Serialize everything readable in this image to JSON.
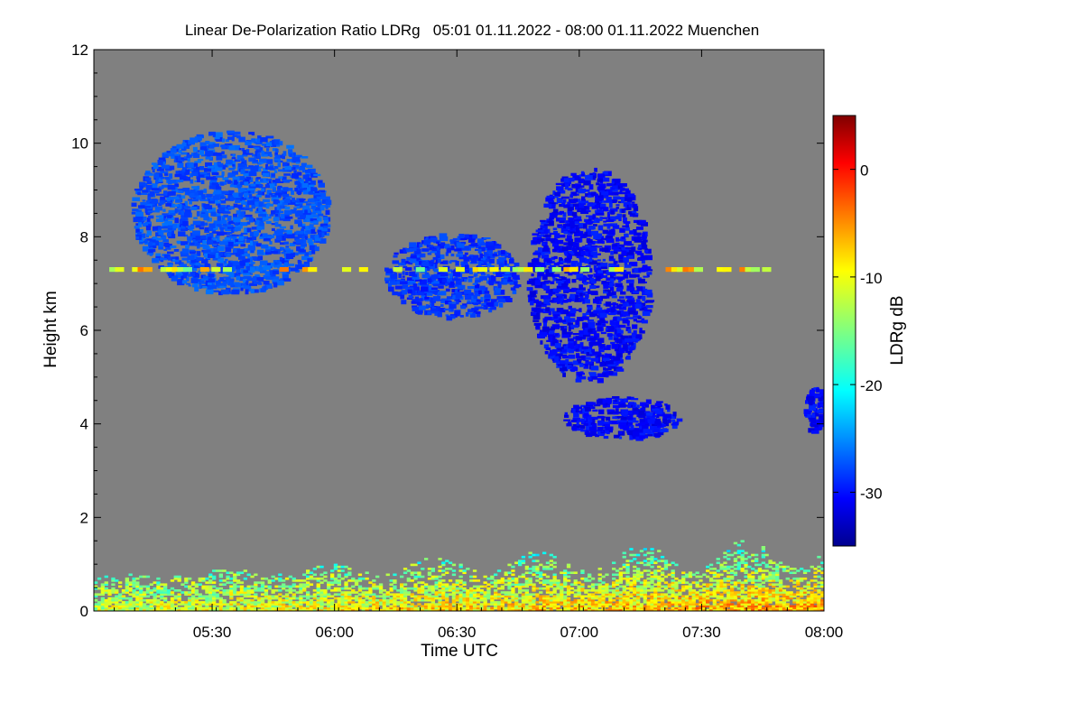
{
  "chart_data": {
    "type": "heatmap",
    "title": "Linear De-Polarization Ratio LDRg   05:01 01.11.2022 - 08:00 01.11.2022 Muenchen",
    "xlabel": "Time UTC",
    "ylabel": "Height km",
    "colorbar_label": "LDRg dB",
    "x_range": [
      "05:01",
      "08:00"
    ],
    "x_ticks": [
      "05:30",
      "06:00",
      "06:30",
      "07:00",
      "07:30",
      "08:00"
    ],
    "y_range": [
      0,
      12
    ],
    "y_ticks": [
      "0",
      "2",
      "4",
      "6",
      "8",
      "10",
      "12"
    ],
    "colorbar_range": [
      -35,
      5
    ],
    "colorbar_ticks": [
      "0",
      "-10",
      "-20",
      "-30"
    ],
    "colormap": "jet",
    "background_color": "#808080",
    "features": [
      {
        "name": "cirrus-fallstreaks-early",
        "time_start": "05:10",
        "time_end": "05:58",
        "height_range_km": [
          6.8,
          10.3
        ],
        "ldr_db": -27
      },
      {
        "name": "cloud-layer-mid",
        "time_start": "06:12",
        "time_end": "06:45",
        "height_range_km": [
          6.3,
          8.1
        ],
        "ldr_db": -28
      },
      {
        "name": "large-cloud",
        "time_start": "06:47",
        "time_end": "07:17",
        "height_range_km": [
          4.9,
          9.5
        ],
        "ldr_db": -30
      },
      {
        "name": "lower-cloud-4km",
        "time_start": "06:56",
        "time_end": "07:24",
        "height_range_km": [
          3.7,
          4.6
        ],
        "ldr_db": -30
      },
      {
        "name": "cloud-right-edge",
        "time_start": "07:55",
        "time_end": "08:00",
        "height_range_km": [
          3.8,
          4.9
        ],
        "ldr_db": -30
      },
      {
        "name": "boundary-layer-aerosol",
        "time_start": "05:01",
        "time_end": "08:00",
        "height_range_km": [
          0.0,
          1.6
        ],
        "ldr_db": -12
      },
      {
        "name": "thin-layer-7.3km",
        "time_start": "05:02",
        "time_end": "07:49",
        "height_range_km": [
          7.25,
          7.35
        ],
        "ldr_db": -10
      }
    ]
  }
}
